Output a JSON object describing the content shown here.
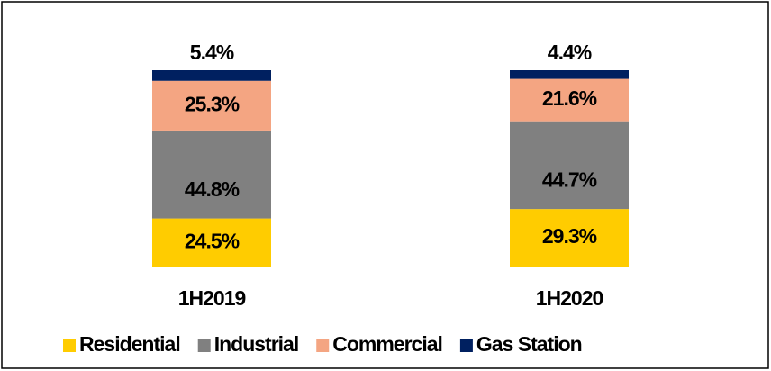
{
  "chart_data": {
    "type": "stacked_bar",
    "categories": [
      "1H2019",
      "1H2020"
    ],
    "series": [
      {
        "name": "Residential",
        "color": "#ffcc00",
        "values": [
          24.5,
          29.3
        ],
        "value_labels": [
          "24.5%",
          "29.3%"
        ]
      },
      {
        "name": "Industrial",
        "color": "#808080",
        "values": [
          44.8,
          44.7
        ],
        "value_labels": [
          "44.8%",
          "44.7%"
        ]
      },
      {
        "name": "Commercial",
        "color": "#f4a582",
        "values": [
          25.3,
          21.6
        ],
        "value_labels": [
          "25.3%",
          "21.6%"
        ]
      },
      {
        "name": "Gas Station",
        "color": "#002060",
        "values": [
          5.4,
          4.4
        ],
        "value_labels": [
          "5.4%",
          "4.4%"
        ]
      }
    ],
    "legend": "bottom"
  }
}
